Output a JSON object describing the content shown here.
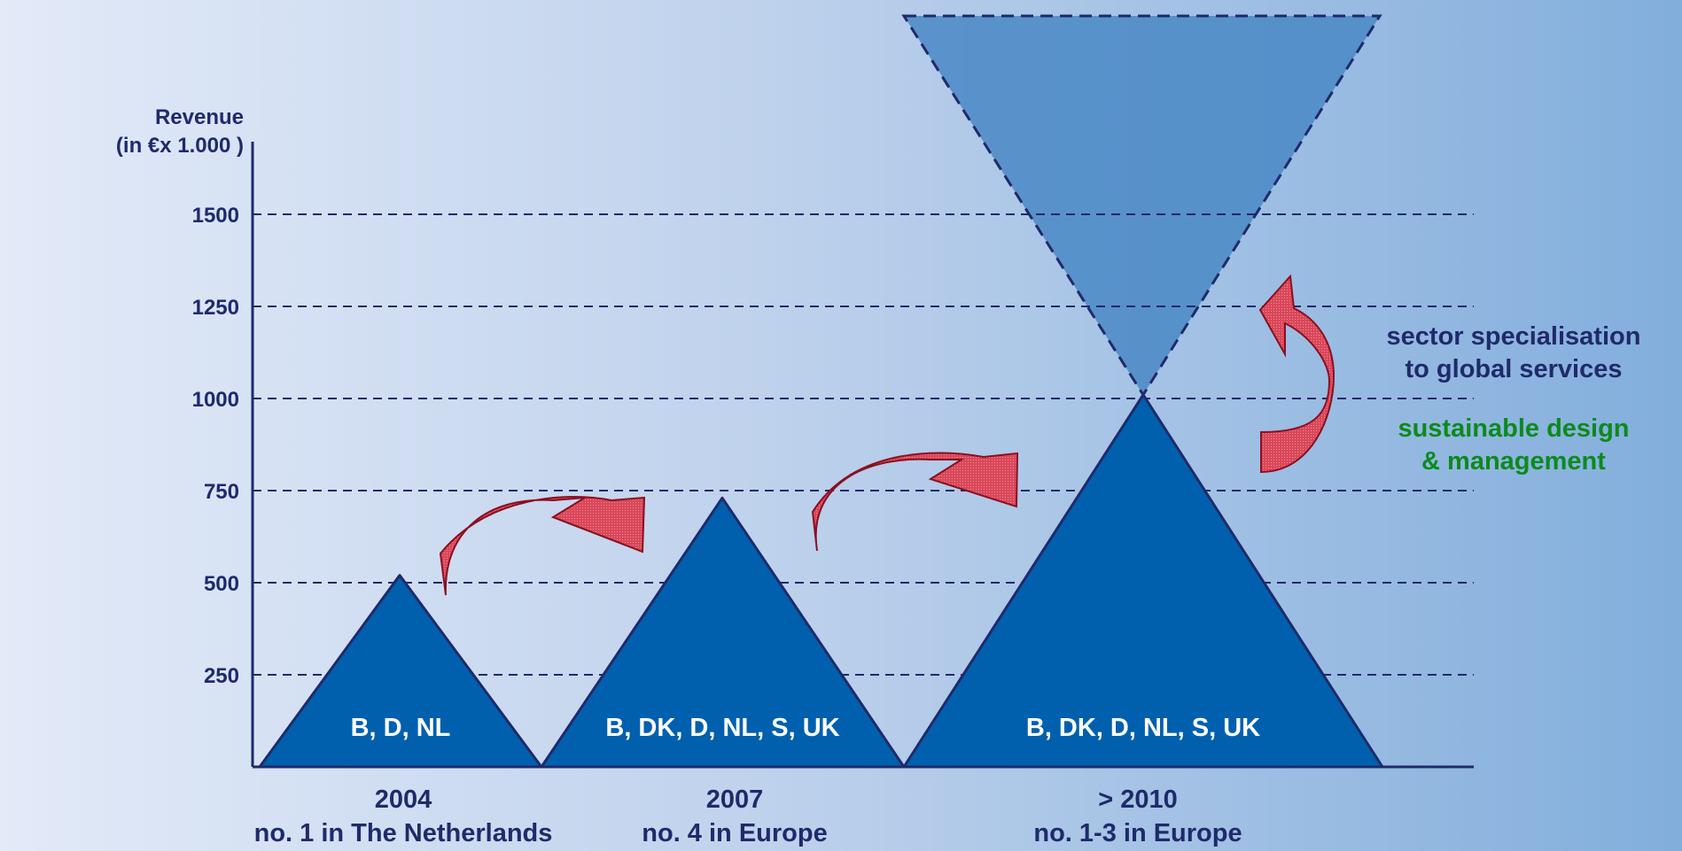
{
  "colors": {
    "navy": "#1F2A6B",
    "triangle_fill": "#0060AE",
    "funnel_fill": "#4A88C6",
    "arrow_fill": "#D94A5C",
    "arrow_stroke": "#8A1020",
    "green_text": "#0C8A1E",
    "white_text": "#FFFFFF"
  },
  "chart_data": {
    "type": "area",
    "ylabel_line1": "Revenue",
    "ylabel_line2": "(in €x 1.000 )",
    "ylim": [
      0,
      1750
    ],
    "yticks": [
      250,
      500,
      750,
      1000,
      1250,
      1500
    ],
    "grid": true,
    "stages": [
      {
        "name": "2004",
        "subtitle": "no. 1 in The Netherlands",
        "countries": "B, D, NL",
        "peak": 520
      },
      {
        "name": "2007",
        "subtitle": "no. 4 in Europe",
        "countries": "B, DK, D, NL, S, UK",
        "peak": 730
      },
      {
        "name": "> 2010",
        "subtitle": "no. 1-3 in Europe",
        "countries": "B, DK, D, NL, S, UK",
        "peak": 1010
      }
    ],
    "funnel": {
      "apex": 1010,
      "top": 2050
    }
  },
  "annotations": {
    "blue_line1": "sector specialisation",
    "blue_line2": "to global services",
    "green_line1": "sustainable design",
    "green_line2": "& management"
  },
  "icons": [
    "growth-arrow-icon",
    "growth-arrow-icon",
    "curved-up-arrow-icon"
  ]
}
